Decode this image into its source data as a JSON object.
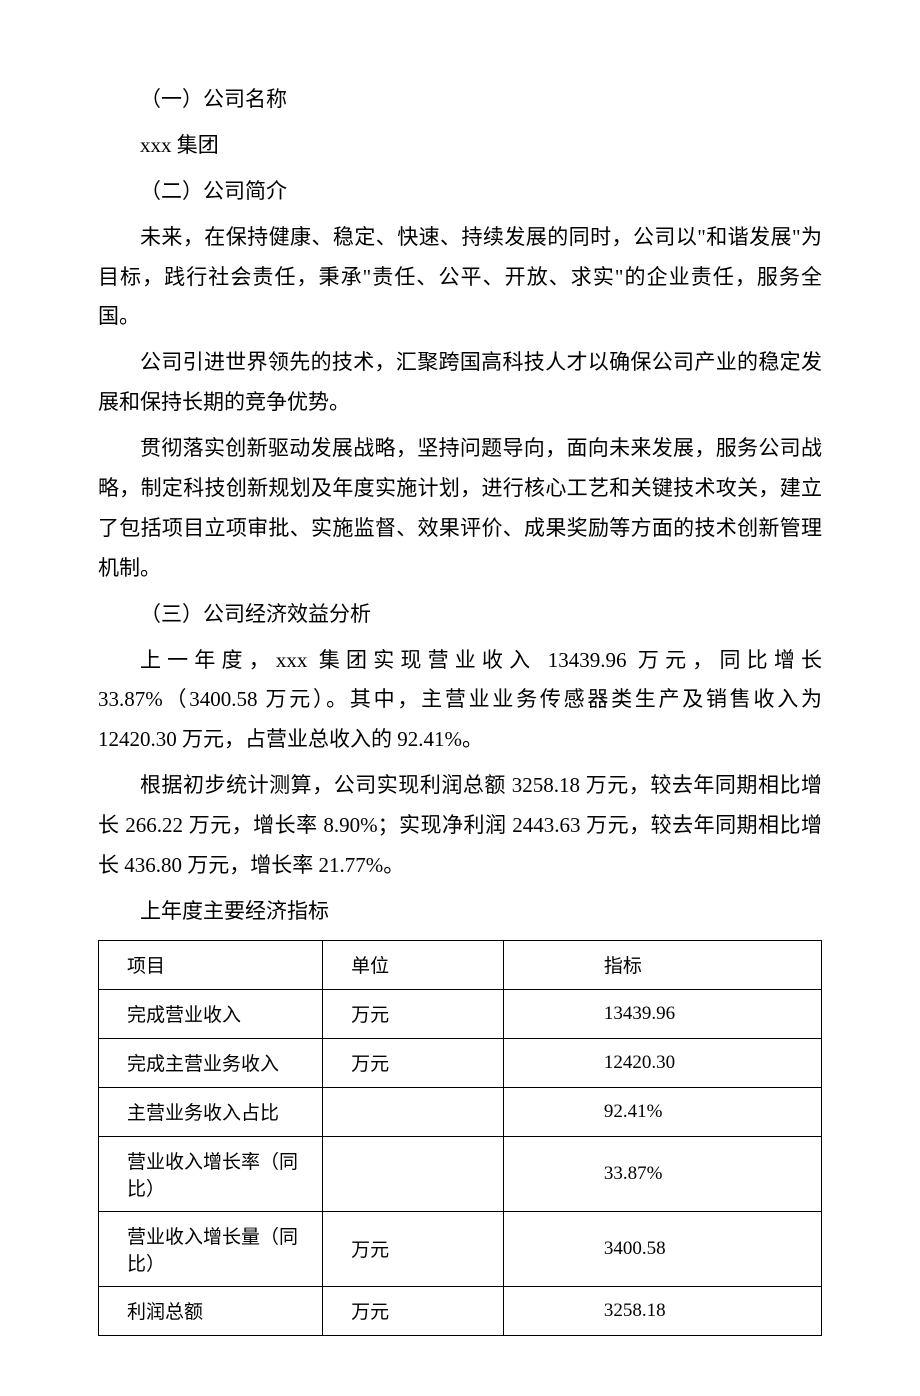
{
  "section1": {
    "heading": "（一）公司名称",
    "company": "xxx 集团"
  },
  "section2": {
    "heading": "（二）公司简介",
    "p1": "未来，在保持健康、稳定、快速、持续发展的同时，公司以\"和谐发展\"为目标，践行社会责任，秉承\"责任、公平、开放、求实\"的企业责任，服务全国。",
    "p2": "公司引进世界领先的技术，汇聚跨国高科技人才以确保公司产业的稳定发展和保持长期的竞争优势。",
    "p3": "贯彻落实创新驱动发展战略，坚持问题导向，面向未来发展，服务公司战略，制定科技创新规划及年度实施计划，进行核心工艺和关键技术攻关，建立了包括项目立项审批、实施监督、效果评价、成果奖励等方面的技术创新管理机制。"
  },
  "section3": {
    "heading": "（三）公司经济效益分析",
    "p1": "上一年度，xxx 集团实现营业收入 13439.96 万元，同比增长33.87%（3400.58 万元）。其中，主营业业务传感器类生产及销售收入为 12420.30 万元，占营业总收入的 92.41%。",
    "p2": "根据初步统计测算，公司实现利润总额 3258.18 万元，较去年同期相比增长 266.22 万元，增长率 8.90%；实现净利润 2443.63 万元，较去年同期相比增长 436.80 万元，增长率 21.77%。"
  },
  "table": {
    "caption": "上年度主要经济指标",
    "header": {
      "c1": "项目",
      "c2": "单位",
      "c3": "指标"
    },
    "rows": [
      {
        "c1": "完成营业收入",
        "c2": "万元",
        "c3": "13439.96"
      },
      {
        "c1": "完成主营业务收入",
        "c2": "万元",
        "c3": "12420.30"
      },
      {
        "c1": "主营业务收入占比",
        "c2": "",
        "c3": "92.41%"
      },
      {
        "c1": "营业收入增长率（同比）",
        "c2": "",
        "c3": "33.87%"
      },
      {
        "c1": "营业收入增长量（同比）",
        "c2": "万元",
        "c3": "3400.58"
      },
      {
        "c1": "利润总额",
        "c2": "万元",
        "c3": "3258.18"
      }
    ]
  }
}
